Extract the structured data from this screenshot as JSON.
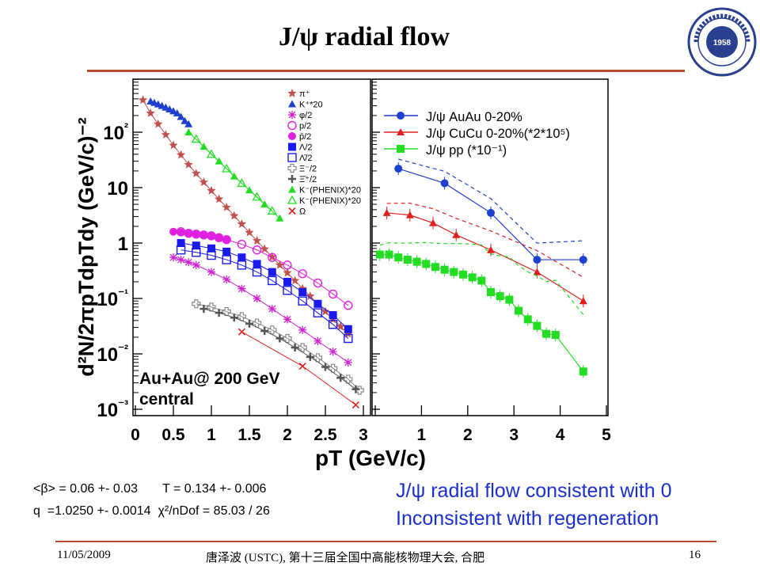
{
  "slide": {
    "title": "J/ψ radial flow",
    "fit_line1": "<β> = 0.06 +- 0.03       T = 0.134 +- 0.006",
    "fit_line2": "q  =1.0250 +- 0.0014  χ²/nDof = 85.03 / 26",
    "conclusion1": "J/ψ radial flow consistent with 0",
    "conclusion2": "Inconsistent with regeneration",
    "footer_date": "11/05/2009",
    "footer_center": "唐泽波 (USTC), 第十三届全国中高能核物理大会, 合肥",
    "footer_page": "16",
    "seal_year": "1958",
    "seal_text": "University of Science and Technology of China",
    "colors": {
      "accent_line": "#b24a2e",
      "conclusion": "#1a2fd0",
      "seal": "#2a3f8f"
    }
  },
  "chart_data": [
    {
      "type": "scatter",
      "title": "",
      "xlabel": "pT (GeV/c)",
      "ylabel": "d²N/2πpTdpTdy (GeV/c)⁻²",
      "xlim": [
        0,
        3
      ],
      "ylim": [
        0.001,
        700
      ],
      "yscale": "log",
      "x_ticks": [
        "0",
        "0.5",
        "1",
        "1.5",
        "2",
        "2.5",
        "3"
      ],
      "y_ticks": [
        "10⁻³",
        "10⁻²",
        "10⁻¹",
        "1",
        "10",
        "10²"
      ],
      "annotation": "Au+Au@ 200 GeV\ncentral",
      "legend_position": "top-right",
      "series": [
        {
          "name": "π⁺",
          "color": "#c0504d",
          "marker": "star",
          "x": [
            0.1,
            0.2,
            0.3,
            0.4,
            0.5,
            0.6,
            0.7,
            0.8,
            0.9,
            1.0,
            1.1,
            1.2,
            1.3,
            1.4,
            1.5,
            1.6,
            1.7,
            1.8,
            1.9,
            2.0,
            2.1,
            2.2,
            2.3,
            2.4,
            2.5,
            2.6,
            2.7,
            2.8
          ],
          "y": [
            380,
            220,
            140,
            90,
            58,
            39,
            26,
            18,
            12.5,
            8.8,
            6.2,
            4.4,
            3.1,
            2.2,
            1.55,
            1.1,
            0.78,
            0.56,
            0.4,
            0.29,
            0.21,
            0.15,
            0.11,
            0.08,
            0.058,
            0.042,
            0.031,
            0.023
          ]
        },
        {
          "name": "K⁺*20",
          "color": "#1f3fcf",
          "marker": "triangle",
          "x": [
            0.2,
            0.25,
            0.3,
            0.35,
            0.4,
            0.45,
            0.5,
            0.55,
            0.6,
            0.65,
            0.7
          ],
          "y": [
            360,
            340,
            320,
            300,
            280,
            260,
            240,
            220,
            190,
            160,
            140
          ]
        },
        {
          "name": "φ/2",
          "color": "#d020d0",
          "marker": "asterisk",
          "x": [
            0.5,
            0.6,
            0.7,
            0.8,
            1.0,
            1.2,
            1.4,
            1.6,
            1.8,
            2.0,
            2.2,
            2.4,
            2.6,
            2.8
          ],
          "y": [
            0.55,
            0.5,
            0.45,
            0.4,
            0.3,
            0.22,
            0.15,
            0.1,
            0.065,
            0.042,
            0.027,
            0.017,
            0.011,
            0.007
          ]
        },
        {
          "name": "p/2",
          "color": "#e020e0",
          "marker": "open-circle",
          "x": [
            0.6,
            0.7,
            0.8,
            0.9,
            1.0,
            1.1,
            1.2,
            1.4,
            1.6,
            1.8,
            2.0,
            2.2,
            2.4,
            2.6,
            2.8
          ],
          "y": [
            1.6,
            1.5,
            1.45,
            1.4,
            1.35,
            1.25,
            1.15,
            0.95,
            0.75,
            0.55,
            0.4,
            0.28,
            0.19,
            0.12,
            0.075
          ]
        },
        {
          "name": "p̄/2",
          "color": "#e020e0",
          "marker": "filled-circle",
          "x": [
            0.5,
            0.6,
            0.7,
            0.8,
            0.9,
            1.0,
            1.1,
            1.2
          ],
          "y": [
            1.6,
            1.55,
            1.5,
            1.45,
            1.4,
            1.35,
            1.25,
            1.15
          ]
        },
        {
          "name": "Λ/2",
          "color": "#1a1aee",
          "marker": "filled-square",
          "x": [
            0.6,
            0.8,
            1.0,
            1.2,
            1.4,
            1.6,
            1.8,
            2.0,
            2.2,
            2.4,
            2.6,
            2.8
          ],
          "y": [
            1.0,
            0.9,
            0.8,
            0.7,
            0.55,
            0.42,
            0.3,
            0.2,
            0.13,
            0.08,
            0.05,
            0.028
          ]
        },
        {
          "name": "Λ̄/2",
          "color": "#1a1aee",
          "marker": "open-square",
          "x": [
            0.6,
            0.8,
            1.0,
            1.2,
            1.4,
            1.6,
            1.8,
            2.0,
            2.2,
            2.4,
            2.6,
            2.8
          ],
          "y": [
            0.75,
            0.68,
            0.6,
            0.5,
            0.4,
            0.3,
            0.21,
            0.14,
            0.09,
            0.055,
            0.034,
            0.019
          ]
        },
        {
          "name": "Ξ⁻/2",
          "color": "#888888",
          "marker": "open-cross",
          "x": [
            0.8,
            1.0,
            1.2,
            1.4,
            1.6,
            1.8,
            2.0,
            2.2,
            2.4,
            2.6,
            2.8,
            2.95
          ],
          "y": [
            0.08,
            0.07,
            0.058,
            0.047,
            0.036,
            0.027,
            0.019,
            0.013,
            0.0085,
            0.0055,
            0.0035,
            0.0022
          ]
        },
        {
          "name": "Ξ̄⁺/2",
          "color": "#555555",
          "marker": "cross",
          "x": [
            0.9,
            1.1,
            1.3,
            1.5,
            1.7,
            1.9,
            2.1,
            2.3,
            2.5,
            2.7,
            2.9
          ],
          "y": [
            0.065,
            0.055,
            0.045,
            0.035,
            0.026,
            0.019,
            0.013,
            0.0088,
            0.0058,
            0.0037,
            0.0023
          ]
        },
        {
          "name": "K⁻(PHENIX)*20",
          "color": "#22dd22",
          "marker": "triangle",
          "x": [
            0.7,
            0.9,
            1.1,
            1.3,
            1.5,
            1.7,
            1.9
          ],
          "y": [
            100,
            55,
            30,
            16,
            9,
            5,
            2.8
          ]
        },
        {
          "name": "K⁻(PHENIX)*20",
          "color": "#22dd22",
          "marker": "open-triangle",
          "x": [
            0.8,
            1.0,
            1.2,
            1.4,
            1.6,
            1.8
          ],
          "y": [
            75,
            40,
            22,
            12,
            6.8,
            3.8
          ]
        },
        {
          "name": "Ω",
          "color": "#e02020",
          "marker": "x",
          "x": [
            1.4,
            2.2,
            2.9
          ],
          "y": [
            0.025,
            0.006,
            0.0012
          ]
        }
      ]
    },
    {
      "type": "scatter",
      "title": "",
      "xlabel": "pT (GeV/c)",
      "xlim": [
        0,
        5
      ],
      "yscale": "log",
      "x_ticks": [
        "0",
        "1",
        "2",
        "3",
        "4",
        "5"
      ],
      "legend_position": "top-right",
      "series": [
        {
          "name": "J/ψ AuAu 0-20%",
          "color": "#1f3fcf",
          "marker": "filled-circle",
          "x": [
            0.5,
            1.5,
            2.5,
            3.5,
            4.5
          ],
          "y": [
            22,
            12,
            3.5,
            0.5,
            0.5
          ]
        },
        {
          "name": "J/ψ CuCu 0-20%(*2*10⁵)",
          "color": "#e02020",
          "marker": "triangle",
          "x": [
            0.25,
            0.75,
            1.25,
            1.75,
            2.5,
            3.5,
            4.5
          ],
          "y": [
            3.5,
            3.2,
            2.3,
            1.4,
            0.75,
            0.3,
            0.09
          ]
        },
        {
          "name": "J/ψ pp (*10⁻¹)",
          "color": "#22dd22",
          "marker": "filled-square",
          "x": [
            0.1,
            0.3,
            0.5,
            0.7,
            0.9,
            1.1,
            1.3,
            1.5,
            1.7,
            1.9,
            2.1,
            2.3,
            2.5,
            2.7,
            2.9,
            3.1,
            3.3,
            3.5,
            3.7,
            3.9,
            4.5
          ],
          "y": [
            0.62,
            0.62,
            0.55,
            0.5,
            0.46,
            0.42,
            0.37,
            0.33,
            0.3,
            0.27,
            0.24,
            0.21,
            0.13,
            0.11,
            0.095,
            0.06,
            0.042,
            0.032,
            0.023,
            0.022,
            0.0048
          ]
        }
      ]
    }
  ]
}
